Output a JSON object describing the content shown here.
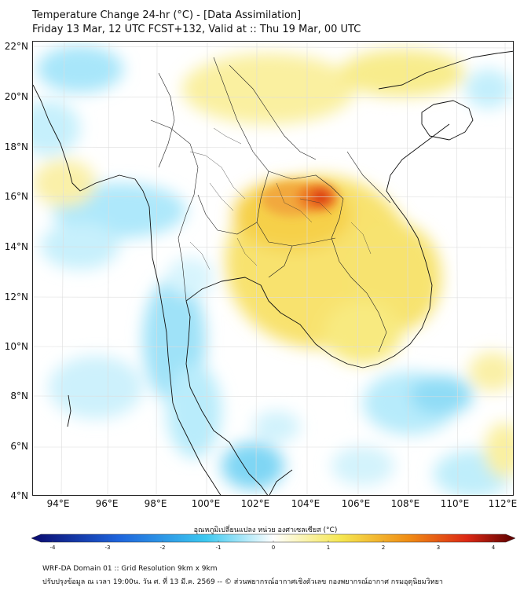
{
  "title": {
    "line1": "Temperature Change 24-hr (°C) - [Data Assimilation]",
    "line2": "Friday 13 Mar, 12 UTC FCST+132, Valid at :: Thu 19 Mar, 00 UTC"
  },
  "axes": {
    "lat_labels": [
      "22°N",
      "20°N",
      "18°N",
      "16°N",
      "14°N",
      "12°N",
      "10°N",
      "8°N",
      "6°N",
      "4°N"
    ],
    "lon_labels": [
      "94°E",
      "96°E",
      "98°E",
      "100°E",
      "102°E",
      "104°E",
      "106°E",
      "108°E",
      "110°E",
      "112°E"
    ]
  },
  "colorbar": {
    "title": "อุณหภูมิเปลี่ยนแปลง หน่วย องศาเซลเซียส (°C)",
    "ticks": [
      "-4",
      "-3",
      "-2",
      "-1",
      "0",
      "1",
      "2",
      "3",
      "4"
    ],
    "colors": {
      "cold_extreme": "#0a0a6e",
      "cold": "#1e64dc",
      "cool": "#3cc8f0",
      "neutral": "#ffffff",
      "warm": "#f5e650",
      "hot": "#f08c14",
      "very_hot": "#dc2814",
      "hot_extreme": "#5a0000"
    }
  },
  "footer": {
    "line1": "WRF-DA Domain 01 :: Grid Resolution 9km x 9km",
    "line2": "ปรับปรุงข้อมูล ณ เวลา 19:00น. วัน ศ. ที่ 13 มี.ค. 2569 -- © ส่วนพยากรณ์อากาศเชิงตัวเลข กองพยากรณ์อากาศ กรมอุตุนิยมวิทยา"
  }
}
